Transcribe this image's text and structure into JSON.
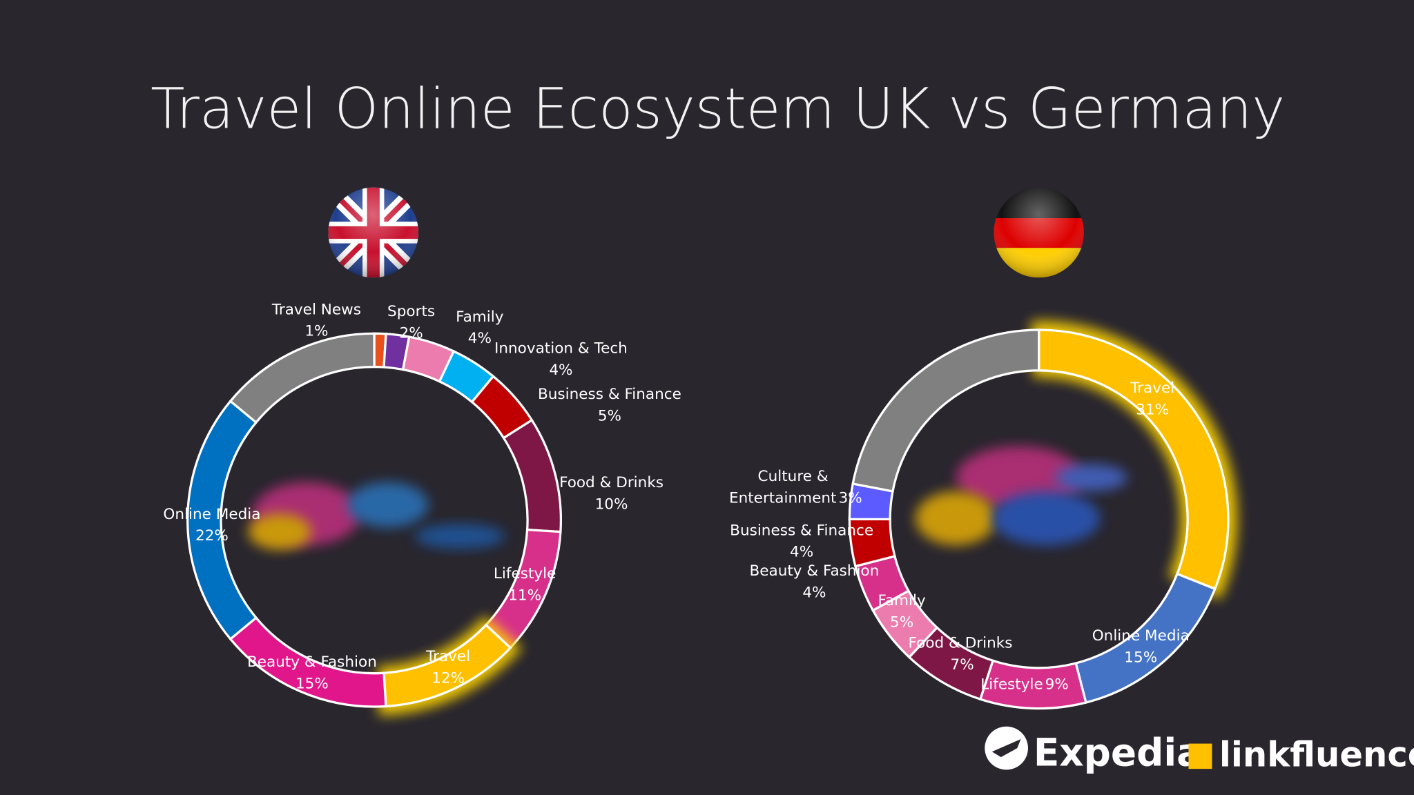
{
  "title": "Travel Online Ecosystem UK vs Germany",
  "logos": [
    "Expedia",
    "linkfluence"
  ],
  "chart_data": [
    {
      "type": "pie",
      "donut": true,
      "categories": [
        "Travel News",
        "Sports",
        "Family",
        "Innovation & Tech",
        "Business & Finance",
        "Food & Drinks",
        "Lifestyle",
        "Travel",
        "Beauty & Fashion",
        "Online Media",
        null
      ],
      "values": [
        1,
        2,
        4,
        4,
        5,
        10,
        11,
        12,
        15,
        22,
        14
      ],
      "value_labels": [
        "1%",
        "2%",
        "4%",
        "4%",
        "5%",
        "10%",
        "11%",
        "12%",
        "15%",
        "22%",
        null
      ],
      "colors": [
        "#e8501e",
        "#7030a0",
        "#ec7bae",
        "#00b0f0",
        "#c00000",
        "#7f1746",
        "#d6308a",
        "#ffc000",
        "#e0168a",
        "#0070c0",
        "#808080"
      ],
      "highlight": "Travel"
    },
    {
      "type": "pie",
      "donut": true,
      "categories": [
        "Travel",
        "Online Media",
        "Lifestyle",
        "Food & Drinks",
        "Family",
        "Beauty & Fashion",
        "Business & Finance",
        "Culture & Entertainment",
        null
      ],
      "values": [
        31,
        15,
        9,
        7,
        5,
        4,
        4,
        3,
        22
      ],
      "value_labels": [
        "31%",
        "15%",
        "9%",
        "7%",
        "5%",
        "4%",
        "4%",
        "3%",
        null
      ],
      "colors": [
        "#ffc000",
        "#4472c4",
        "#d6308a",
        "#7f1746",
        "#ec7bae",
        "#d6308a",
        "#c00000",
        "#5b5bff",
        "#808080"
      ],
      "highlight": "Travel"
    }
  ]
}
